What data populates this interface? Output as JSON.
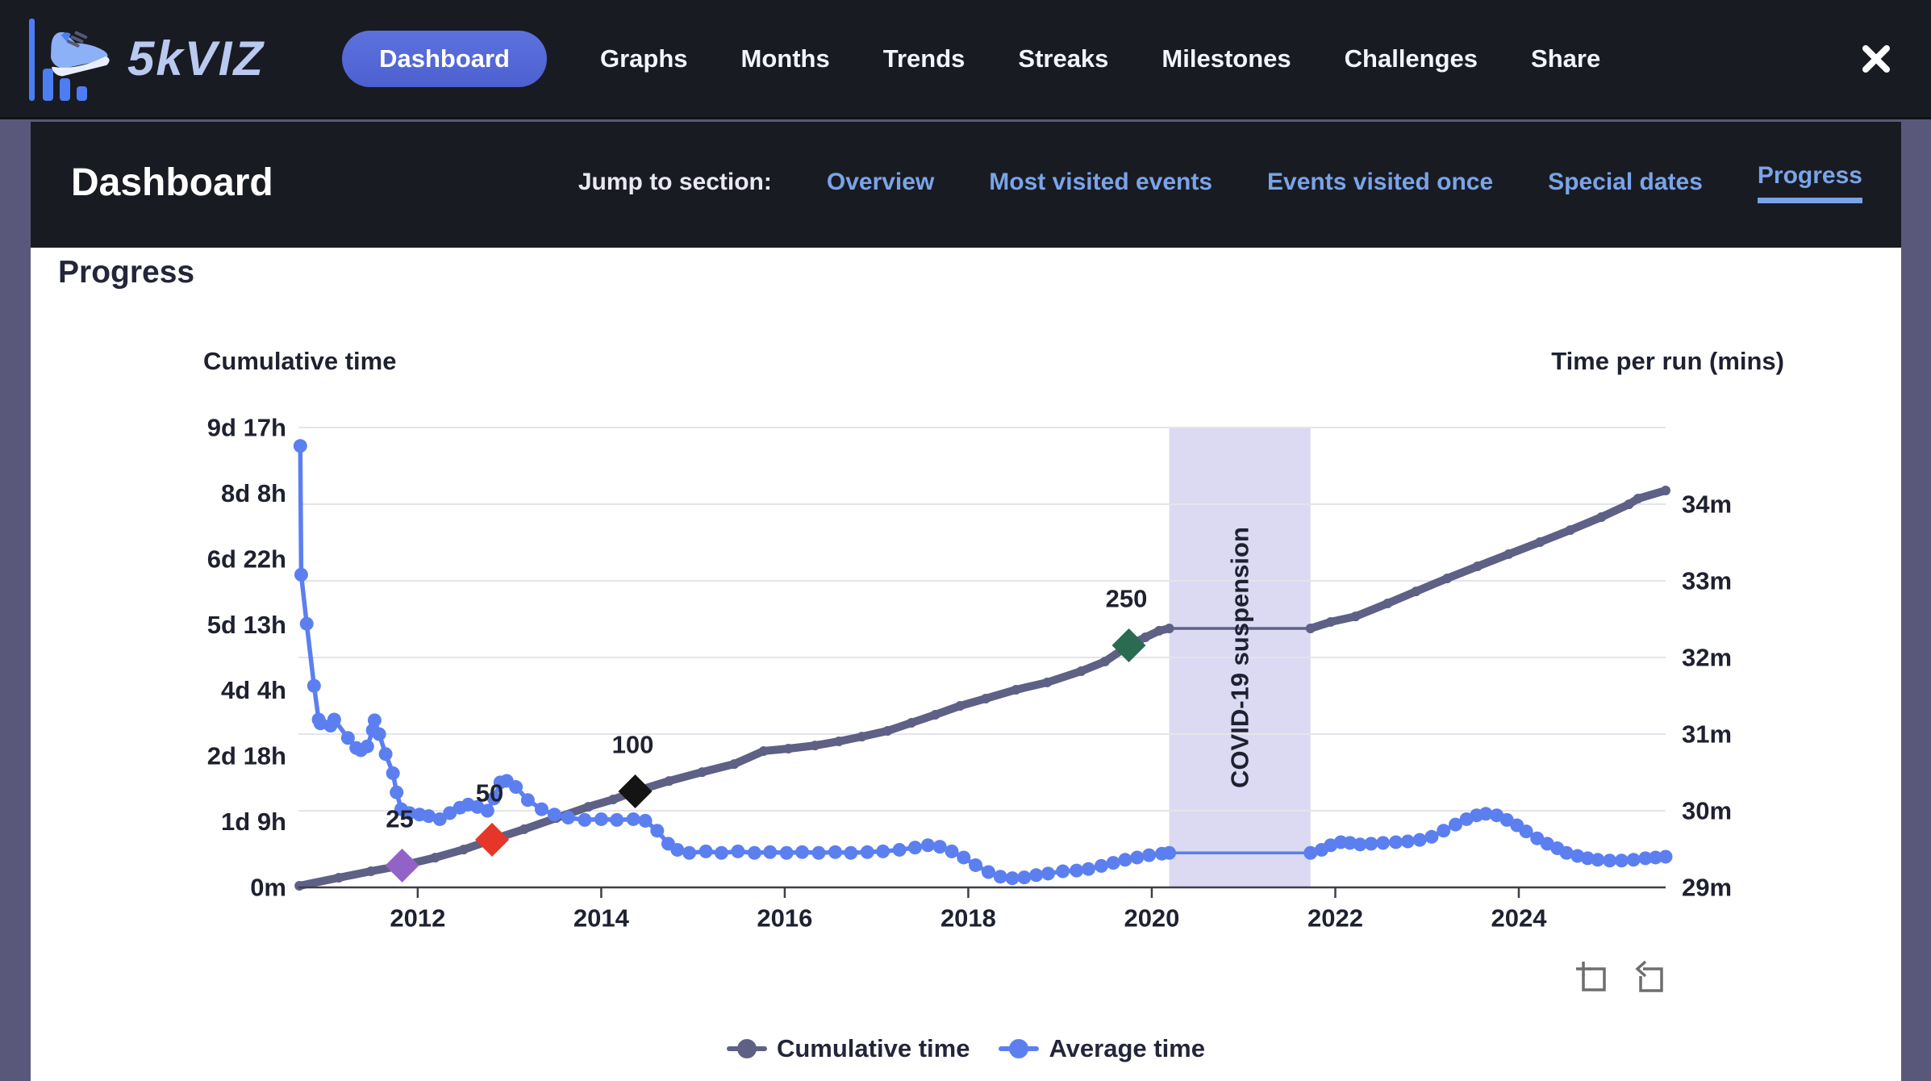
{
  "nav": {
    "brand": "5kVIZ",
    "items": [
      {
        "label": "Dashboard",
        "active": true
      },
      {
        "label": "Graphs",
        "active": false
      },
      {
        "label": "Months",
        "active": false
      },
      {
        "label": "Trends",
        "active": false
      },
      {
        "label": "Streaks",
        "active": false
      },
      {
        "label": "Milestones",
        "active": false
      },
      {
        "label": "Challenges",
        "active": false
      },
      {
        "label": "Share",
        "active": false
      }
    ],
    "close_icon": "close-x"
  },
  "header": {
    "title": "Dashboard",
    "jump_label": "Jump to section:",
    "links": [
      "Overview",
      "Most visited events",
      "Events visited once",
      "Special dates",
      "Progress"
    ],
    "active_link": "Progress"
  },
  "section": {
    "title": "Progress"
  },
  "colors": {
    "accent_blue": "#5c7ff0",
    "slate": "#5e6086",
    "link_blue": "#7aa4e8",
    "band": "#dcd9f2",
    "grid": "#e4e4ea",
    "axis": "#3f3f46"
  },
  "chart_data": {
    "type": "line",
    "axis_title_left": "Cumulative time",
    "axis_title_right": "Time per run (mins)",
    "x_range": [
      2010.7,
      2025.6
    ],
    "x_ticks": [
      2012,
      2014,
      2016,
      2018,
      2020,
      2022,
      2024
    ],
    "grid": true,
    "legend_position": "bottom",
    "left_axis": {
      "unit": "hours",
      "range": [
        0,
        233.33
      ],
      "tick_labels": [
        "0m",
        "1d 9h",
        "2d 18h",
        "4d 4h",
        "5d 13h",
        "6d 22h",
        "8d 8h",
        "9d 17h"
      ]
    },
    "right_axis": {
      "unit": "minutes",
      "range": [
        29,
        35
      ],
      "tick_labels": [
        "29m",
        "30m",
        "31m",
        "32m",
        "33m",
        "34m"
      ]
    },
    "annotation_band": {
      "label": "COVID-19 suspension",
      "x_start": 2020.19,
      "x_end": 2021.73,
      "color": "#dcd9f2"
    },
    "milestones": [
      {
        "label": "25",
        "year": 2011.83,
        "hours": 11.1,
        "color": "#9263c7"
      },
      {
        "label": "50",
        "year": 2012.81,
        "hours": 24.2,
        "color": "#e63529"
      },
      {
        "label": "100",
        "year": 2014.37,
        "hours": 48.7,
        "color": "#141414"
      },
      {
        "label": "250",
        "year": 2019.75,
        "hours": 122.8,
        "color": "#2a6b52"
      }
    ],
    "legend": [
      "Cumulative time",
      "Average time"
    ],
    "series": [
      {
        "name": "Cumulative time",
        "axis": "left",
        "color": "#5e6086",
        "points": [
          [
            2010.71,
            0.8
          ],
          [
            2011.14,
            4.9
          ],
          [
            2011.49,
            8.2
          ],
          [
            2011.83,
            11.1
          ],
          [
            2012.19,
            15.1
          ],
          [
            2012.5,
            19.2
          ],
          [
            2012.81,
            24.2
          ],
          [
            2013.16,
            29.5
          ],
          [
            2013.51,
            35.2
          ],
          [
            2013.86,
            40.9
          ],
          [
            2014.13,
            44.6
          ],
          [
            2014.37,
            48.7
          ],
          [
            2014.74,
            54.0
          ],
          [
            2015.1,
            58.5
          ],
          [
            2015.45,
            62.6
          ],
          [
            2015.77,
            69.2
          ],
          [
            2016.04,
            70.4
          ],
          [
            2016.33,
            72.0
          ],
          [
            2016.59,
            74.1
          ],
          [
            2016.84,
            76.5
          ],
          [
            2017.12,
            79.4
          ],
          [
            2017.38,
            83.5
          ],
          [
            2017.64,
            87.6
          ],
          [
            2017.91,
            92.1
          ],
          [
            2018.19,
            95.8
          ],
          [
            2018.52,
            100.3
          ],
          [
            2018.86,
            104.0
          ],
          [
            2019.23,
            109.7
          ],
          [
            2019.49,
            114.6
          ],
          [
            2019.75,
            122.8
          ],
          [
            2019.93,
            126.9
          ],
          [
            2020.08,
            130.2
          ],
          [
            2020.19,
            131.4
          ],
          [
            2021.73,
            131.4
          ],
          [
            2021.95,
            134.7
          ],
          [
            2022.22,
            137.5
          ],
          [
            2022.57,
            144.1
          ],
          [
            2022.88,
            150.2
          ],
          [
            2023.22,
            156.8
          ],
          [
            2023.55,
            162.9
          ],
          [
            2023.89,
            169.1
          ],
          [
            2024.23,
            175.2
          ],
          [
            2024.56,
            181.3
          ],
          [
            2024.9,
            187.9
          ],
          [
            2025.2,
            194.4
          ],
          [
            2025.3,
            197.3
          ],
          [
            2025.6,
            201.4
          ]
        ]
      },
      {
        "name": "Average time",
        "axis": "right",
        "color": "#5c7ff0",
        "points": [
          [
            2010.72,
            34.76
          ],
          [
            2010.73,
            33.08
          ],
          [
            2010.79,
            32.44
          ],
          [
            2010.87,
            31.63
          ],
          [
            2010.92,
            31.19
          ],
          [
            2010.94,
            31.14
          ],
          [
            2011.05,
            31.11
          ],
          [
            2011.09,
            31.19
          ],
          [
            2011.24,
            30.95
          ],
          [
            2011.33,
            30.82
          ],
          [
            2011.38,
            30.79
          ],
          [
            2011.45,
            30.84
          ],
          [
            2011.51,
            31.05
          ],
          [
            2011.53,
            31.18
          ],
          [
            2011.58,
            31.0
          ],
          [
            2011.65,
            30.74
          ],
          [
            2011.73,
            30.49
          ],
          [
            2011.77,
            30.24
          ],
          [
            2011.82,
            30.02
          ],
          [
            2011.91,
            29.97
          ],
          [
            2012.02,
            29.95
          ],
          [
            2012.12,
            29.93
          ],
          [
            2012.24,
            29.89
          ],
          [
            2012.35,
            29.97
          ],
          [
            2012.46,
            30.04
          ],
          [
            2012.55,
            30.08
          ],
          [
            2012.65,
            30.05
          ],
          [
            2012.76,
            30.0
          ],
          [
            2012.83,
            30.16
          ],
          [
            2012.9,
            30.37
          ],
          [
            2012.97,
            30.39
          ],
          [
            2013.07,
            30.31
          ],
          [
            2013.2,
            30.14
          ],
          [
            2013.35,
            30.02
          ],
          [
            2013.49,
            29.95
          ],
          [
            2013.64,
            29.91
          ],
          [
            2013.82,
            29.88
          ],
          [
            2014.0,
            29.89
          ],
          [
            2014.17,
            29.88
          ],
          [
            2014.35,
            29.89
          ],
          [
            2014.48,
            29.87
          ],
          [
            2014.61,
            29.74
          ],
          [
            2014.73,
            29.57
          ],
          [
            2014.83,
            29.49
          ],
          [
            2014.96,
            29.45
          ],
          [
            2015.14,
            29.47
          ],
          [
            2015.31,
            29.45
          ],
          [
            2015.49,
            29.47
          ],
          [
            2015.67,
            29.45
          ],
          [
            2015.84,
            29.46
          ],
          [
            2016.02,
            29.45
          ],
          [
            2016.19,
            29.46
          ],
          [
            2016.37,
            29.45
          ],
          [
            2016.55,
            29.46
          ],
          [
            2016.72,
            29.45
          ],
          [
            2016.9,
            29.46
          ],
          [
            2017.07,
            29.47
          ],
          [
            2017.25,
            29.49
          ],
          [
            2017.42,
            29.52
          ],
          [
            2017.56,
            29.55
          ],
          [
            2017.69,
            29.53
          ],
          [
            2017.82,
            29.47
          ],
          [
            2017.95,
            29.39
          ],
          [
            2018.08,
            29.29
          ],
          [
            2018.22,
            29.2
          ],
          [
            2018.35,
            29.14
          ],
          [
            2018.48,
            29.12
          ],
          [
            2018.61,
            29.13
          ],
          [
            2018.74,
            29.16
          ],
          [
            2018.87,
            29.18
          ],
          [
            2019.03,
            29.21
          ],
          [
            2019.18,
            29.22
          ],
          [
            2019.31,
            29.24
          ],
          [
            2019.45,
            29.28
          ],
          [
            2019.58,
            29.32
          ],
          [
            2019.71,
            29.36
          ],
          [
            2019.84,
            29.39
          ],
          [
            2019.97,
            29.42
          ],
          [
            2020.11,
            29.44
          ],
          [
            2020.19,
            29.45
          ],
          [
            2021.73,
            29.45
          ],
          [
            2021.85,
            29.49
          ],
          [
            2021.95,
            29.55
          ],
          [
            2022.06,
            29.59
          ],
          [
            2022.16,
            29.58
          ],
          [
            2022.27,
            29.56
          ],
          [
            2022.39,
            29.57
          ],
          [
            2022.52,
            29.58
          ],
          [
            2022.66,
            29.59
          ],
          [
            2022.79,
            29.6
          ],
          [
            2022.92,
            29.62
          ],
          [
            2023.05,
            29.66
          ],
          [
            2023.18,
            29.74
          ],
          [
            2023.31,
            29.82
          ],
          [
            2023.43,
            29.89
          ],
          [
            2023.54,
            29.94
          ],
          [
            2023.64,
            29.96
          ],
          [
            2023.76,
            29.94
          ],
          [
            2023.87,
            29.88
          ],
          [
            2023.98,
            29.81
          ],
          [
            2024.08,
            29.73
          ],
          [
            2024.2,
            29.64
          ],
          [
            2024.31,
            29.57
          ],
          [
            2024.42,
            29.51
          ],
          [
            2024.52,
            29.45
          ],
          [
            2024.64,
            29.41
          ],
          [
            2024.75,
            29.38
          ],
          [
            2024.86,
            29.36
          ],
          [
            2024.99,
            29.35
          ],
          [
            2025.12,
            29.35
          ],
          [
            2025.25,
            29.36
          ],
          [
            2025.38,
            29.38
          ],
          [
            2025.49,
            29.39
          ],
          [
            2025.6,
            29.4
          ]
        ]
      }
    ]
  },
  "chart_controls": {
    "zoom_icon": "zoom-selection-icon",
    "reset_icon": "reset-zoom-icon"
  }
}
